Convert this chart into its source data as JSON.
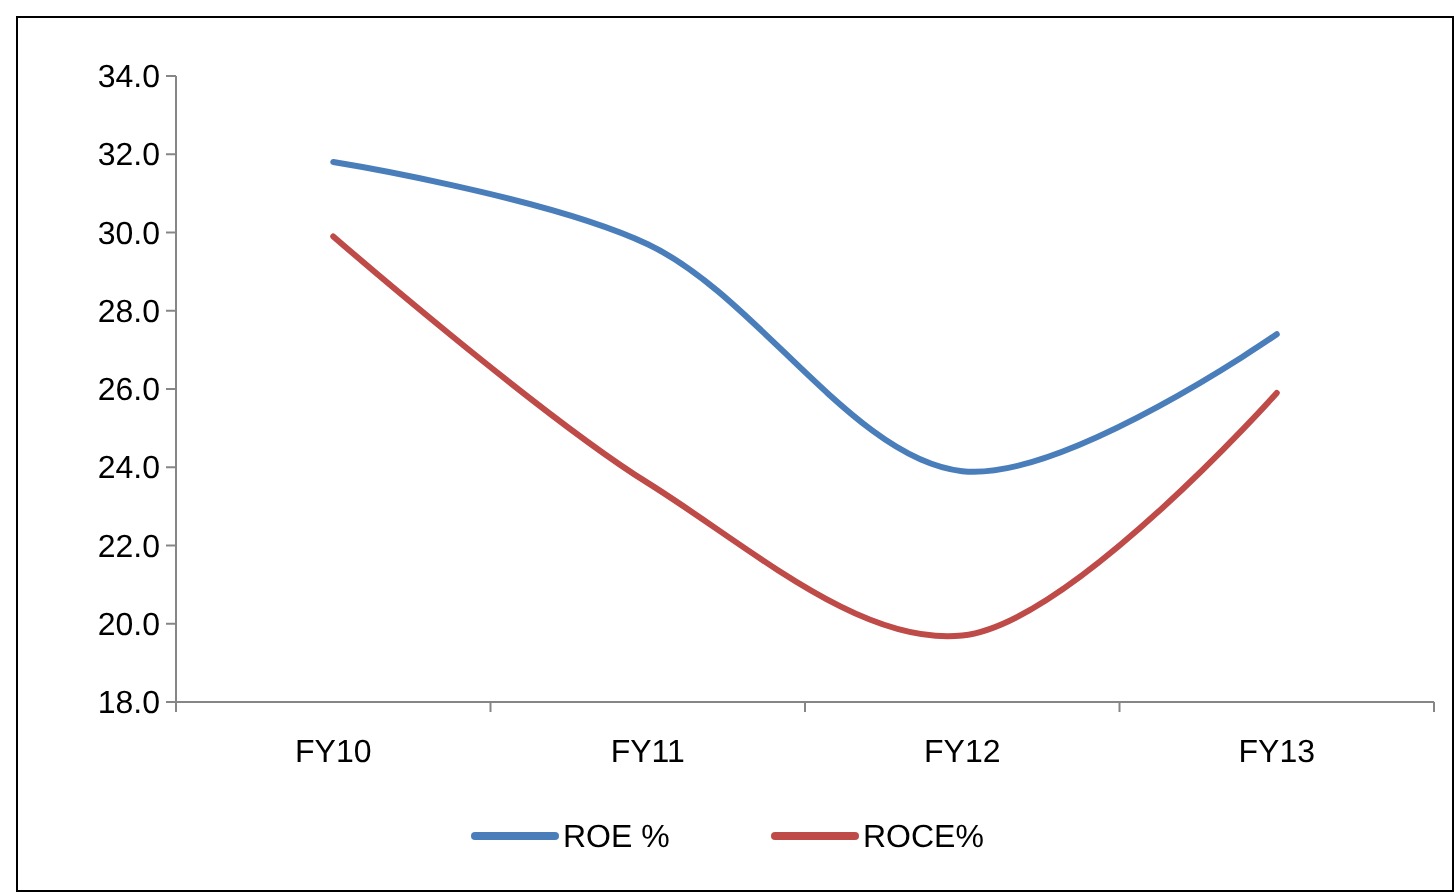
{
  "chart_data": {
    "type": "line",
    "categories": [
      "FY10",
      "FY11",
      "FY12",
      "FY13"
    ],
    "series": [
      {
        "name": "ROE %",
        "color": "#4a7ebb",
        "values": [
          31.8,
          29.7,
          23.9,
          27.4
        ]
      },
      {
        "name": "ROCE%",
        "color": "#be4b48",
        "values": [
          29.9,
          23.6,
          19.7,
          25.9
        ]
      }
    ],
    "ylim": [
      18,
      34
    ],
    "yticks": [
      {
        "value": 18,
        "label": "18.0"
      },
      {
        "value": 20,
        "label": "20.0"
      },
      {
        "value": 22,
        "label": "22.0"
      },
      {
        "value": 24,
        "label": "24.0"
      },
      {
        "value": 26,
        "label": "26.0"
      },
      {
        "value": 28,
        "label": "28.0"
      },
      {
        "value": 30,
        "label": "30.0"
      },
      {
        "value": 32,
        "label": "32.0"
      },
      {
        "value": 34,
        "label": "34.0"
      }
    ],
    "grid": false,
    "legend": "bottom",
    "marker": "none",
    "line_style": "solid"
  }
}
